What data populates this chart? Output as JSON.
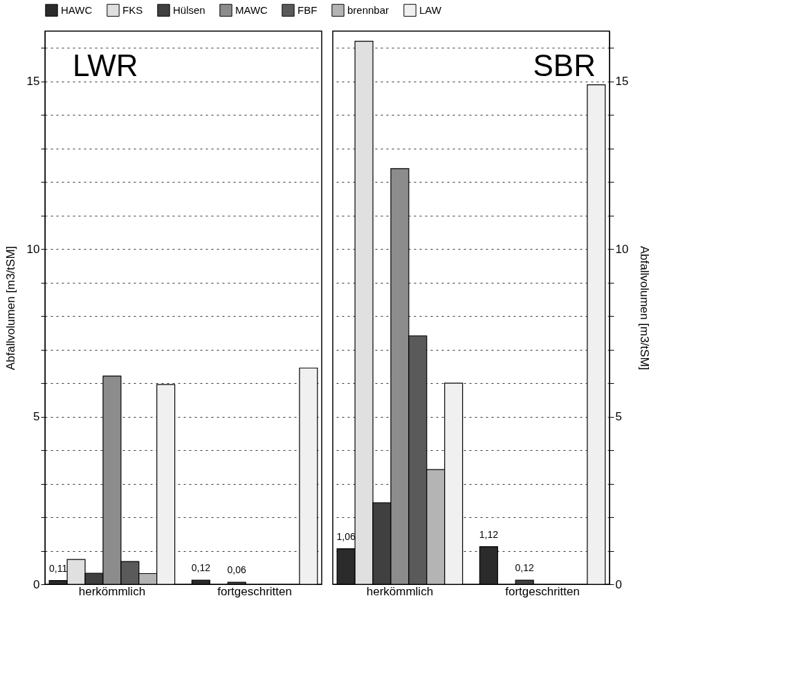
{
  "chart_data": [
    {
      "type": "bar",
      "title": "LWR",
      "ylabel": "Abfallvolumen [m3/tSM]",
      "categories": [
        "herkömmlich",
        "fortgeschritten"
      ],
      "series": [
        {
          "name": "HAWC",
          "color": "#2b2b2b",
          "values": [
            0.11,
            0.12
          ],
          "value_labels": [
            "0,11",
            "0,12"
          ]
        },
        {
          "name": "FKS",
          "color": "#e0e0e0",
          "values": [
            0.74,
            null
          ]
        },
        {
          "name": "Hülsen",
          "color": "#404040",
          "values": [
            0.33,
            0.06
          ],
          "value_labels": [
            null,
            "0,06"
          ]
        },
        {
          "name": "MAWC",
          "color": "#8c8c8c",
          "values": [
            6.21,
            null
          ]
        },
        {
          "name": "FBF",
          "color": "#5a5a5a",
          "values": [
            0.68,
            null
          ]
        },
        {
          "name": "brennbar",
          "color": "#b4b4b4",
          "values": [
            0.32,
            null
          ]
        },
        {
          "name": "LAW",
          "color": "#f0f0f0",
          "values": [
            5.96,
            6.45
          ]
        }
      ],
      "ylim": [
        0,
        16.5
      ],
      "yticks": [
        0,
        {
          "value": 1,
          "label": null
        },
        {
          "value": 2,
          "label": null
        },
        {
          "value": 3,
          "label": null
        },
        {
          "value": 4,
          "label": null
        },
        5,
        {
          "value": 6,
          "label": null
        },
        {
          "value": 7,
          "label": null
        },
        {
          "value": 8,
          "label": null
        },
        {
          "value": 9,
          "label": null
        },
        10,
        {
          "value": 11,
          "label": null
        },
        {
          "value": 12,
          "label": null
        },
        {
          "value": 13,
          "label": null
        },
        {
          "value": 14,
          "label": null
        },
        15,
        {
          "value": 16,
          "label": null
        }
      ],
      "grid": "y",
      "legend": "top"
    },
    {
      "type": "bar",
      "title": "SBR",
      "y2label": "Abfallvolumen [m3/tSM]",
      "categories": [
        "herkömmlich",
        "fortgeschritten"
      ],
      "series": [
        {
          "name": "HAWC",
          "color": "#2b2b2b",
          "values": [
            1.06,
            1.12
          ],
          "value_labels": [
            "1,06",
            "1,12"
          ]
        },
        {
          "name": "FKS",
          "color": "#e0e0e0",
          "values": [
            16.2,
            null
          ]
        },
        {
          "name": "Hülsen",
          "color": "#404040",
          "values": [
            2.43,
            0.12
          ],
          "value_labels": [
            null,
            "0,12"
          ]
        },
        {
          "name": "MAWC",
          "color": "#8c8c8c",
          "values": [
            12.4,
            null
          ]
        },
        {
          "name": "FBF",
          "color": "#5a5a5a",
          "values": [
            7.41,
            null
          ]
        },
        {
          "name": "brennbar",
          "color": "#b4b4b4",
          "values": [
            3.42,
            null
          ]
        },
        {
          "name": "LAW",
          "color": "#f0f0f0",
          "values": [
            6.0,
            14.9
          ]
        }
      ],
      "y2lim": [
        0,
        16.5
      ],
      "y2ticks": [
        0,
        {
          "value": 1,
          "label": null
        },
        {
          "value": 2,
          "label": null
        },
        {
          "value": 3,
          "label": null
        },
        {
          "value": 4,
          "label": null
        },
        5,
        {
          "value": 6,
          "label": null
        },
        {
          "value": 7,
          "label": null
        },
        {
          "value": 8,
          "label": null
        },
        {
          "value": 9,
          "label": null
        },
        10,
        {
          "value": 11,
          "label": null
        },
        {
          "value": 12,
          "label": null
        },
        {
          "value": 13,
          "label": null
        },
        {
          "value": 14,
          "label": null
        },
        15,
        {
          "value": 16,
          "label": null
        }
      ],
      "grid": "y"
    }
  ]
}
